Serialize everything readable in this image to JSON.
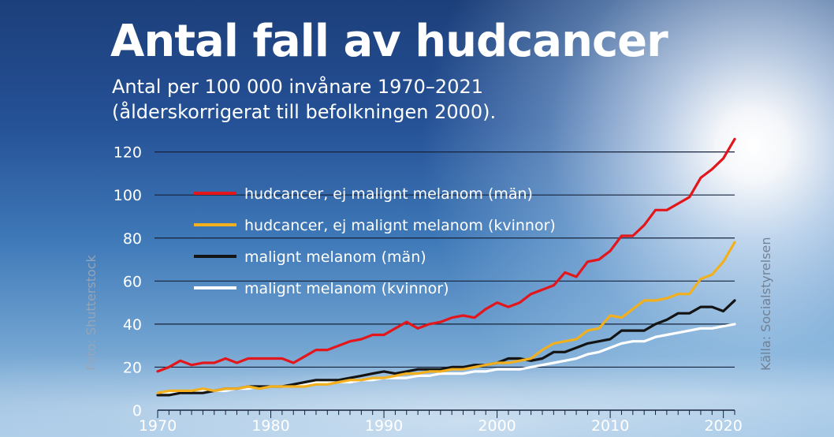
{
  "title": "Antal fall av hudcancer",
  "subtitle_lines": [
    "Antal per 100 000 invånare 1970–2021",
    "(ålderskorrigerat till befolkningen 2000)."
  ],
  "credits": {
    "photo": "Foto: Shutterstock",
    "source": "Källa: Socialstyrelsen"
  },
  "chart_data": {
    "type": "line",
    "xlim": [
      1970,
      2021
    ],
    "ylim": [
      0,
      125
    ],
    "x_ticks": [
      1970,
      1980,
      1990,
      2000,
      2010,
      2020
    ],
    "y_ticks": [
      0,
      20,
      40,
      60,
      80,
      100,
      120
    ],
    "grid": "horizontal",
    "legend_position": "top-left",
    "x": [
      1970,
      1971,
      1972,
      1973,
      1974,
      1975,
      1976,
      1977,
      1978,
      1979,
      1980,
      1981,
      1982,
      1983,
      1984,
      1985,
      1986,
      1987,
      1988,
      1989,
      1990,
      1991,
      1992,
      1993,
      1994,
      1995,
      1996,
      1997,
      1998,
      1999,
      2000,
      2001,
      2002,
      2003,
      2004,
      2005,
      2006,
      2007,
      2008,
      2009,
      2010,
      2011,
      2012,
      2013,
      2014,
      2015,
      2016,
      2017,
      2018,
      2019,
      2020,
      2021
    ],
    "series": [
      {
        "name": "hudcancer, ej malignt melanom (män)",
        "color": "#e3161b",
        "values": [
          18,
          20,
          23,
          21,
          22,
          22,
          24,
          22,
          24,
          24,
          24,
          24,
          22,
          25,
          28,
          28,
          30,
          32,
          33,
          35,
          35,
          38,
          41,
          38,
          40,
          41,
          43,
          44,
          43,
          47,
          50,
          48,
          50,
          54,
          56,
          58,
          64,
          62,
          69,
          70,
          74,
          81,
          81,
          86,
          93,
          93,
          96,
          99,
          108,
          112,
          117,
          126
        ]
      },
      {
        "name": "hudcancer, ej malignt melanom (kvinnor)",
        "color": "#f2b01e",
        "values": [
          8,
          9,
          9,
          9,
          10,
          9,
          10,
          10,
          11,
          10,
          11,
          11,
          11,
          11,
          12,
          12,
          13,
          14,
          14,
          15,
          15,
          16,
          17,
          17,
          18,
          18,
          19,
          19,
          20,
          21,
          22,
          22,
          23,
          24,
          28,
          31,
          32,
          33,
          37,
          38,
          44,
          43,
          47,
          51,
          51,
          52,
          54,
          54,
          61,
          63,
          69,
          78
        ]
      },
      {
        "name": "malignt melanom (män)",
        "color": "#141414",
        "values": [
          7,
          7,
          8,
          8,
          8,
          9,
          10,
          10,
          11,
          11,
          11,
          11,
          12,
          13,
          14,
          14,
          14,
          15,
          16,
          17,
          18,
          17,
          18,
          19,
          19,
          19,
          20,
          20,
          21,
          21,
          22,
          24,
          24,
          23,
          24,
          27,
          27,
          29,
          31,
          32,
          33,
          37,
          37,
          37,
          40,
          42,
          45,
          45,
          48,
          48,
          46,
          51
        ]
      },
      {
        "name": "malignt melanom (kvinnor)",
        "color": "#ffffff",
        "values": [
          8,
          8,
          8,
          9,
          9,
          9,
          9,
          10,
          10,
          11,
          11,
          11,
          11,
          12,
          13,
          13,
          13,
          13,
          14,
          14,
          15,
          15,
          15,
          16,
          16,
          17,
          17,
          17,
          18,
          18,
          19,
          19,
          19,
          20,
          21,
          22,
          23,
          24,
          26,
          27,
          29,
          31,
          32,
          32,
          34,
          35,
          36,
          37,
          38,
          38,
          39,
          40
        ]
      }
    ]
  }
}
